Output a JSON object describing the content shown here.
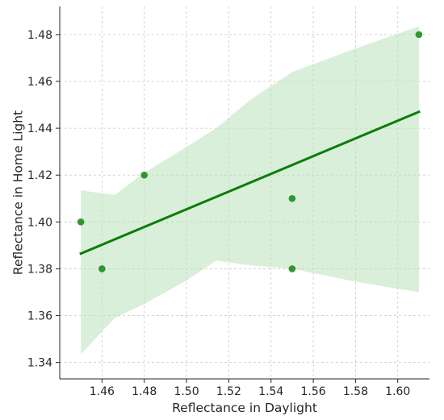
{
  "chart_data": {
    "type": "scatter",
    "title": "",
    "xlabel": "Reflectance in Daylight",
    "ylabel": "Reflectance in Home Light",
    "xlim": [
      1.44,
      1.615
    ],
    "ylim": [
      1.333,
      1.492
    ],
    "x_ticks": [
      "1.46",
      "1.48",
      "1.50",
      "1.52",
      "1.54",
      "1.56",
      "1.58",
      "1.60"
    ],
    "x_tick_values": [
      1.46,
      1.48,
      1.5,
      1.52,
      1.54,
      1.56,
      1.58,
      1.6
    ],
    "y_ticks": [
      "1.34",
      "1.36",
      "1.38",
      "1.40",
      "1.42",
      "1.44",
      "1.46",
      "1.48"
    ],
    "y_tick_values": [
      1.34,
      1.36,
      1.38,
      1.4,
      1.42,
      1.44,
      1.46,
      1.48
    ],
    "grid": true,
    "point_color": "#1e8c1e",
    "line_color": "#0a7d0a",
    "band_color": "#b9e2b9",
    "points": [
      {
        "x": 1.45,
        "y": 1.4
      },
      {
        "x": 1.46,
        "y": 1.38
      },
      {
        "x": 1.48,
        "y": 1.42
      },
      {
        "x": 1.55,
        "y": 1.41
      },
      {
        "x": 1.55,
        "y": 1.38
      },
      {
        "x": 1.61,
        "y": 1.48
      }
    ],
    "regression_line": {
      "x": [
        1.45,
        1.61
      ],
      "y": [
        1.3865,
        1.447
      ]
    },
    "confidence_band": {
      "x": [
        1.45,
        1.466,
        1.48,
        1.5,
        1.514,
        1.53,
        1.55,
        1.58,
        1.61
      ],
      "upper": [
        1.4135,
        1.4115,
        1.421,
        1.432,
        1.44,
        1.452,
        1.464,
        1.474,
        1.4835
      ],
      "lower": [
        1.3435,
        1.359,
        1.365,
        1.375,
        1.3835,
        1.3815,
        1.38,
        1.3745,
        1.37
      ]
    }
  }
}
